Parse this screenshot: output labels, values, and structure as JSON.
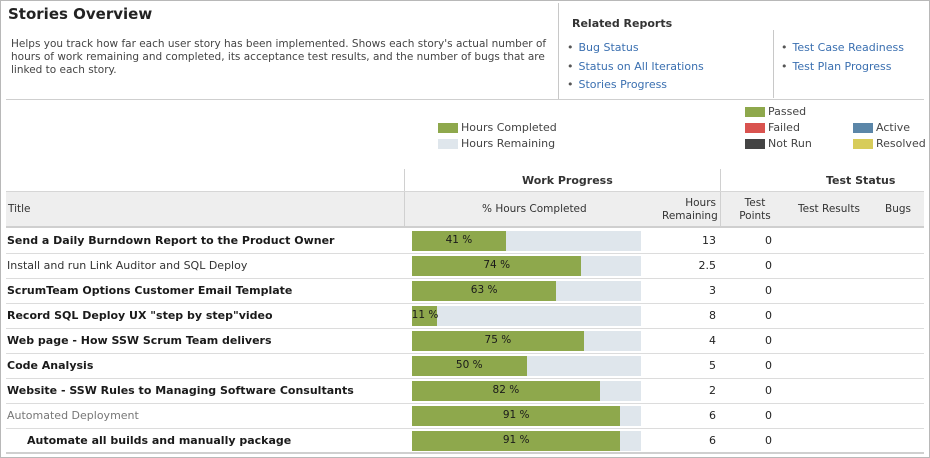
{
  "header": {
    "title": "Stories Overview",
    "description": "Helps you track how far each user story has been implemented. Shows each story's actual number of hours of work remaining and completed, its acceptance test results, and the number of bugs that are linked to each story."
  },
  "related_reports": {
    "heading": "Related Reports",
    "column1": [
      "Bug Status",
      "Status on All Iterations",
      "Stories Progress"
    ],
    "column2": [
      "Test Case Readiness",
      "Test Plan Progress"
    ]
  },
  "legend": {
    "work": [
      {
        "label": "Hours Completed",
        "color": "#8ea84c"
      },
      {
        "label": "Hours Remaining",
        "color": "#dfe6ec"
      }
    ],
    "tests": [
      {
        "label": "Passed",
        "color": "#8ea84c"
      },
      {
        "label": "Failed",
        "color": "#d9534f"
      },
      {
        "label": "Not Run",
        "color": "#444444"
      },
      {
        "label": "Active",
        "color": "#5b86a8"
      },
      {
        "label": "Resolved",
        "color": "#d7cc5a"
      }
    ]
  },
  "table": {
    "group_work": "Work Progress",
    "group_test": "Test Status",
    "columns": {
      "title": "Title",
      "pct": "% Hours Completed",
      "hours_remaining": "Hours Remaining",
      "test_points": "Test Points",
      "test_results": "Test Results",
      "bugs": "Bugs"
    },
    "rows": [
      {
        "title": "Send a Daily Burndown Report to the Product Owner",
        "style": "b",
        "pct": 41,
        "pct_label": "41 %",
        "hours_remaining": "13",
        "test_points": "0"
      },
      {
        "title": "Install and run Link Auditor and SQL Deploy",
        "style": "n",
        "pct": 74,
        "pct_label": "74 %",
        "hours_remaining": "2.5",
        "test_points": "0"
      },
      {
        "title": "ScrumTeam Options Customer Email Template",
        "style": "b",
        "pct": 63,
        "pct_label": "63 %",
        "hours_remaining": "3",
        "test_points": "0"
      },
      {
        "title": "Record SQL Deploy UX \"step by step\"video",
        "style": "b",
        "pct": 11,
        "pct_label": "11 %",
        "hours_remaining": "8",
        "test_points": "0"
      },
      {
        "title": "Web page - How SSW Scrum Team delivers",
        "style": "b",
        "pct": 75,
        "pct_label": "75 %",
        "hours_remaining": "4",
        "test_points": "0"
      },
      {
        "title": "Code Analysis",
        "style": "b",
        "pct": 50,
        "pct_label": "50 %",
        "hours_remaining": "5",
        "test_points": "0"
      },
      {
        "title": "Website - SSW Rules to Managing Software Consultants",
        "style": "b",
        "pct": 82,
        "pct_label": "82 %",
        "hours_remaining": "2",
        "test_points": "0"
      },
      {
        "title": "Automated Deployment",
        "style": "g",
        "pct": 91,
        "pct_label": "91 %",
        "hours_remaining": "6",
        "test_points": "0"
      },
      {
        "title": "Automate all builds and manually package",
        "style": "b ind",
        "pct": 91,
        "pct_label": "91 %",
        "hours_remaining": "6",
        "test_points": "0"
      }
    ]
  }
}
